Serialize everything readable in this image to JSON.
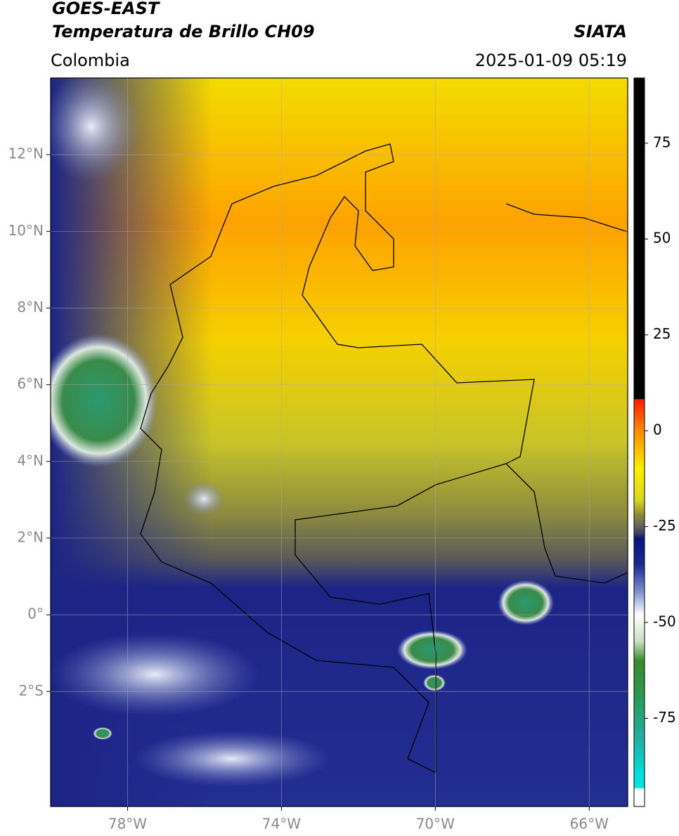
{
  "chart_data": {
    "type": "map",
    "title": "GOES-EAST",
    "subtitle": "Temperatura de Brillo CH09",
    "source": "SIATA",
    "region": "Colombia",
    "datetime": "2025-01-09 05:19",
    "xlim": [
      -80,
      -65
    ],
    "ylim": [
      -5,
      14
    ],
    "xticks": [
      {
        "value": -78,
        "label": "78°W"
      },
      {
        "value": -74,
        "label": "74°W"
      },
      {
        "value": -70,
        "label": "70°W"
      },
      {
        "value": -66,
        "label": "66°W"
      }
    ],
    "yticks": [
      {
        "value": 12,
        "label": "12°N"
      },
      {
        "value": 10,
        "label": "10°N"
      },
      {
        "value": 8,
        "label": "8°N"
      },
      {
        "value": 6,
        "label": "6°N"
      },
      {
        "value": 4,
        "label": "4°N"
      },
      {
        "value": 2,
        "label": "2°N"
      },
      {
        "value": 0,
        "label": "0°"
      },
      {
        "value": -2,
        "label": "2°S"
      }
    ],
    "grid": true,
    "colorbar": {
      "lim": [
        -98,
        92
      ],
      "ticks": [
        75,
        50,
        25,
        0,
        -25,
        -50,
        -75
      ],
      "colormap": [
        {
          "value": 92,
          "color": "#000000"
        },
        {
          "value": 8.3,
          "color": "#000000"
        },
        {
          "value": 8.2,
          "color": "#ff1a00"
        },
        {
          "value": 0,
          "color": "#ff8c00"
        },
        {
          "value": -10,
          "color": "#ffee00"
        },
        {
          "value": -18,
          "color": "#d8d820"
        },
        {
          "value": -22,
          "color": "#8a8a3a"
        },
        {
          "value": -25,
          "color": "#606060"
        },
        {
          "value": -27,
          "color": "#3a3a60"
        },
        {
          "value": -28,
          "color": "#0a1480"
        },
        {
          "value": -35,
          "color": "#1a2a90"
        },
        {
          "value": -42,
          "color": "#8090d0"
        },
        {
          "value": -48,
          "color": "#ffffff"
        },
        {
          "value": -55,
          "color": "#c8e0c0"
        },
        {
          "value": -60,
          "color": "#3a8a2a"
        },
        {
          "value": -70,
          "color": "#2a9a5a"
        },
        {
          "value": -80,
          "color": "#20b0a0"
        },
        {
          "value": -90,
          "color": "#00e0e0"
        },
        {
          "value": -93,
          "color": "#00e0e0"
        },
        {
          "value": -93.5,
          "color": "#ffffff"
        },
        {
          "value": -98,
          "color": "#ffffff"
        }
      ]
    }
  }
}
